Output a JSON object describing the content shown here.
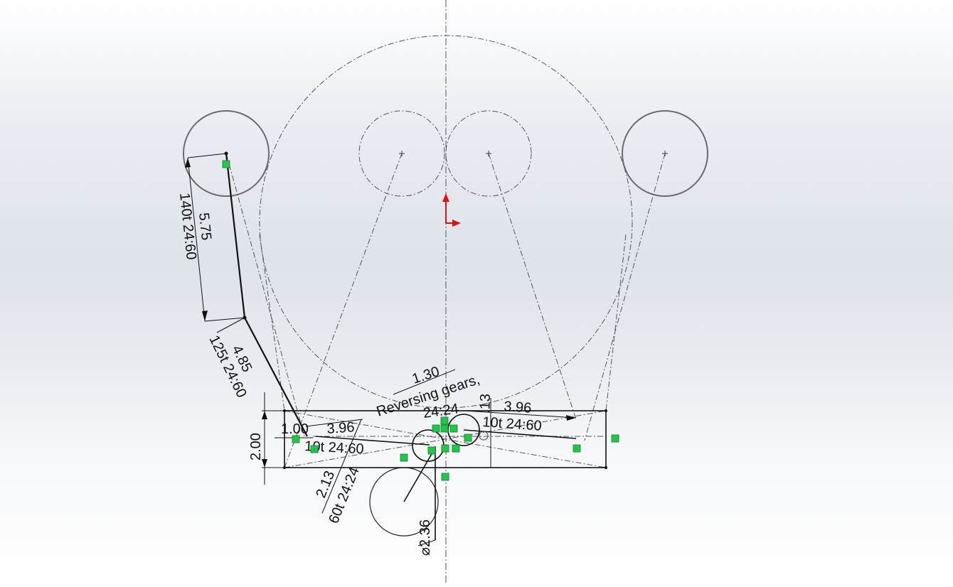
{
  "sketch": {
    "dimensions": {
      "link1_length": "5.75",
      "link1_gear": "140t 24:60",
      "link2_length": "4.85",
      "link2_gear": "125t 24:60",
      "box_height": "2.00",
      "left_offset": "1.00",
      "left_center_dist": "3.96",
      "left_gear": "10t 24:60",
      "lower_dist": "2.13",
      "lower_gear": "60t 24:24",
      "lower_diameter": "⌀2.36",
      "spacing": "1.30",
      "reversing_ratio": "24:24",
      "right_small": ".13",
      "right_center_dist": "3.96",
      "right_gear": "10t 24:60"
    },
    "notes": {
      "reversing_gears": "Reversing gears,"
    },
    "colors": {
      "relation_badge": "#22c64a",
      "origin_axis": "#e01010",
      "geometry": "#111111",
      "construction": "#555555"
    },
    "icons": [
      "origin-icon",
      "relation-icon"
    ]
  }
}
